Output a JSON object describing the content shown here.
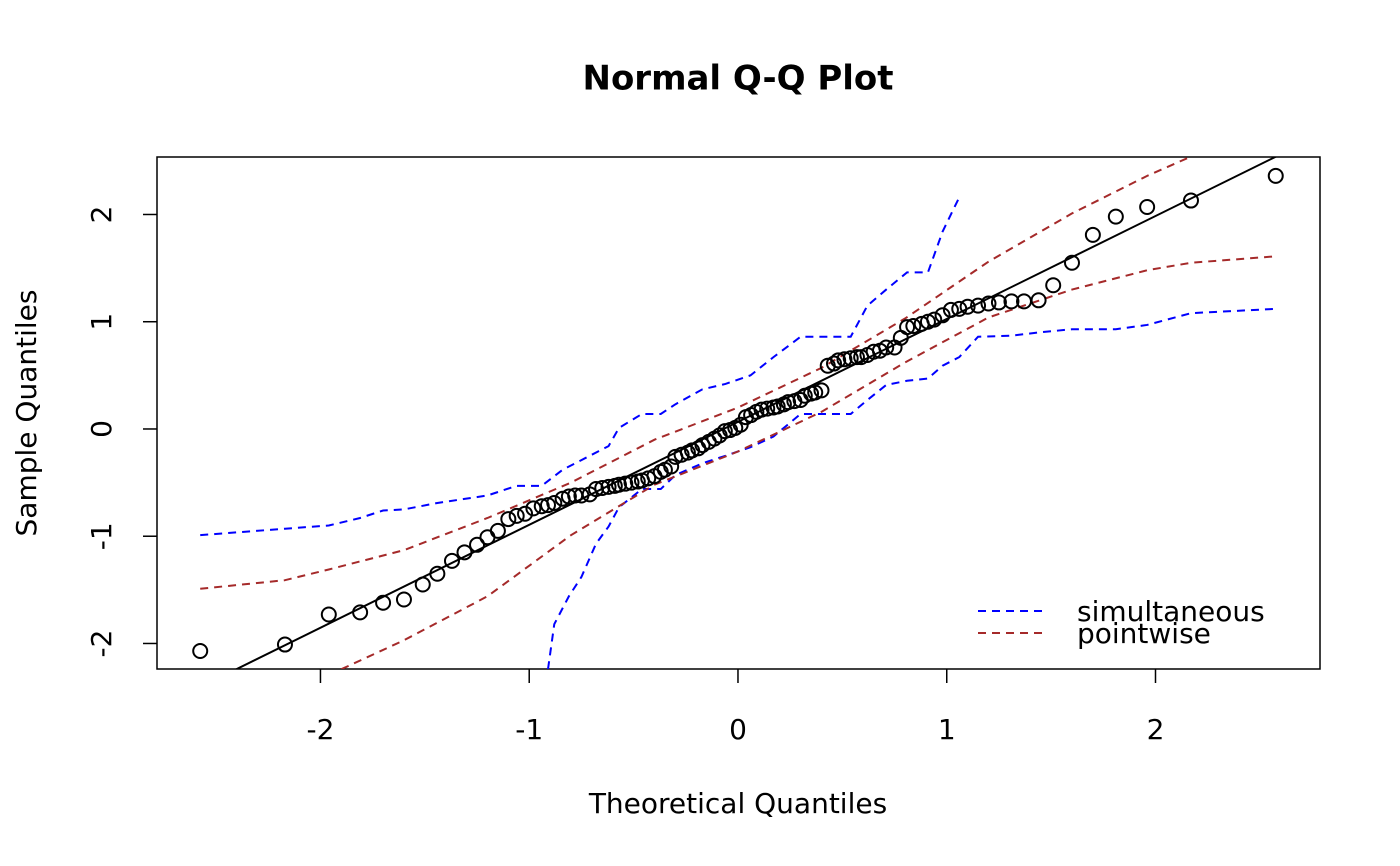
{
  "chart_data": {
    "type": "scatter",
    "title": "Normal Q-Q Plot",
    "xlabel": "Theoretical Quantiles",
    "ylabel": "Sample Quantiles",
    "xlim": [
      -2.783,
      2.788
    ],
    "ylim": [
      -2.238,
      2.536
    ],
    "xticks": [
      -2,
      -1,
      0,
      1,
      2
    ],
    "yticks": [
      -2,
      -1,
      0,
      1,
      2
    ],
    "grid": false,
    "legend": "bottomright",
    "color": "#000000",
    "x": [
      -2.576,
      -2.17,
      -1.96,
      -1.81,
      -1.7,
      -1.6,
      -1.51,
      -1.44,
      -1.37,
      -1.31,
      -1.25,
      -1.2,
      -1.15,
      -1.1,
      -1.06,
      -1.02,
      -0.98,
      -0.94,
      -0.91,
      -0.88,
      -0.84,
      -0.81,
      -0.78,
      -0.75,
      -0.71,
      -0.68,
      -0.65,
      -0.62,
      -0.59,
      -0.57,
      -0.54,
      -0.51,
      -0.48,
      -0.46,
      -0.43,
      -0.4,
      -0.37,
      -0.35,
      -0.32,
      -0.3,
      -0.27,
      -0.24,
      -0.22,
      -0.19,
      -0.17,
      -0.14,
      -0.113,
      -0.088,
      -0.063,
      -0.038,
      -0.013,
      0.013,
      0.038,
      0.063,
      0.088,
      0.113,
      0.14,
      0.17,
      0.19,
      0.22,
      0.24,
      0.27,
      0.3,
      0.32,
      0.35,
      0.37,
      0.4,
      0.43,
      0.46,
      0.48,
      0.51,
      0.54,
      0.57,
      0.59,
      0.62,
      0.65,
      0.68,
      0.71,
      0.75,
      0.78,
      0.81,
      0.84,
      0.88,
      0.91,
      0.94,
      0.98,
      1.02,
      1.06,
      1.1,
      1.15,
      1.2,
      1.25,
      1.31,
      1.37,
      1.44,
      1.51,
      1.6,
      1.7,
      1.81,
      1.96,
      2.17,
      2.576
    ],
    "values": [
      -2.07,
      -2.01,
      -1.73,
      -1.71,
      -1.62,
      -1.59,
      -1.45,
      -1.35,
      -1.23,
      -1.15,
      -1.08,
      -1.01,
      -0.95,
      -0.84,
      -0.81,
      -0.79,
      -0.74,
      -0.72,
      -0.71,
      -0.69,
      -0.65,
      -0.63,
      -0.62,
      -0.62,
      -0.61,
      -0.56,
      -0.55,
      -0.54,
      -0.53,
      -0.52,
      -0.51,
      -0.5,
      -0.49,
      -0.48,
      -0.46,
      -0.44,
      -0.4,
      -0.38,
      -0.35,
      -0.26,
      -0.24,
      -0.22,
      -0.2,
      -0.18,
      -0.15,
      -0.12,
      -0.09,
      -0.06,
      -0.02,
      -0.01,
      0.01,
      0.04,
      0.11,
      0.13,
      0.16,
      0.18,
      0.19,
      0.2,
      0.21,
      0.23,
      0.25,
      0.26,
      0.27,
      0.31,
      0.33,
      0.34,
      0.36,
      0.59,
      0.61,
      0.64,
      0.65,
      0.66,
      0.67,
      0.67,
      0.69,
      0.72,
      0.73,
      0.76,
      0.76,
      0.85,
      0.95,
      0.96,
      0.98,
      1.0,
      1.02,
      1.06,
      1.11,
      1.12,
      1.14,
      1.15,
      1.17,
      1.18,
      1.19,
      1.19,
      1.2,
      1.34,
      1.55,
      1.81,
      1.98,
      2.07,
      2.13,
      2.36
    ],
    "reference_line": {
      "color": "#000000",
      "x": [
        -2.783,
        2.788
      ],
      "values": [
        -2.605,
        2.742
      ]
    },
    "bands": [
      {
        "name": "simultaneous",
        "color": "#0000ff",
        "upper": {
          "x": [
            -2.576,
            -2.17,
            -1.96,
            -1.81,
            -1.7,
            -1.6,
            -1.44,
            -1.2,
            -1.06,
            -0.94,
            -0.84,
            -0.71,
            -0.62,
            -0.57,
            -0.46,
            -0.37,
            -0.3,
            -0.17,
            -0.06,
            0.06,
            0.17,
            0.3,
            0.43,
            0.54,
            0.62,
            0.71,
            0.81,
            0.91,
            0.98,
            1.06
          ],
          "values": [
            -0.99,
            -0.93,
            -0.9,
            -0.83,
            -0.76,
            -0.75,
            -0.69,
            -0.62,
            -0.53,
            -0.53,
            -0.38,
            -0.25,
            -0.16,
            0.01,
            0.14,
            0.14,
            0.23,
            0.37,
            0.42,
            0.5,
            0.67,
            0.86,
            0.86,
            0.86,
            1.15,
            1.3,
            1.46,
            1.46,
            1.84,
            2.16
          ]
        },
        "lower": {
          "x": [
            -0.91,
            -0.88,
            -0.81,
            -0.75,
            -0.68,
            -0.62,
            -0.57,
            -0.46,
            -0.37,
            -0.3,
            -0.17,
            -0.06,
            0.06,
            0.17,
            0.3,
            0.43,
            0.54,
            0.62,
            0.71,
            0.81,
            0.91,
            0.98,
            1.06,
            1.15,
            1.31,
            1.44,
            1.6,
            1.81,
            1.96,
            2.17,
            2.576
          ],
          "values": [
            -2.24,
            -1.82,
            -1.56,
            -1.38,
            -1.07,
            -0.91,
            -0.73,
            -0.56,
            -0.56,
            -0.43,
            -0.32,
            -0.25,
            -0.17,
            -0.07,
            0.14,
            0.14,
            0.14,
            0.27,
            0.41,
            0.45,
            0.47,
            0.59,
            0.67,
            0.86,
            0.87,
            0.9,
            0.93,
            0.93,
            0.97,
            1.08,
            1.12
          ]
        }
      },
      {
        "name": "pointwise",
        "color": "#a52a2a",
        "upper": {
          "x": [
            -2.576,
            -2.17,
            -1.96,
            -1.6,
            -1.2,
            -0.8,
            -0.4,
            0,
            0.4,
            0.8,
            1.2,
            1.6,
            1.96,
            2.17
          ],
          "values": [
            -1.49,
            -1.41,
            -1.31,
            -1.13,
            -0.83,
            -0.5,
            -0.1,
            0.2,
            0.57,
            1.03,
            1.56,
            2.01,
            2.36,
            2.54
          ]
        },
        "lower": {
          "x": [
            -1.9,
            -1.6,
            -1.2,
            -0.8,
            -0.4,
            0,
            0.4,
            0.8,
            1.2,
            1.6,
            1.96,
            2.17,
            2.576
          ],
          "values": [
            -2.24,
            -1.97,
            -1.56,
            -0.99,
            -0.52,
            -0.21,
            0.16,
            0.62,
            1.04,
            1.3,
            1.48,
            1.55,
            1.61
          ]
        }
      }
    ]
  }
}
